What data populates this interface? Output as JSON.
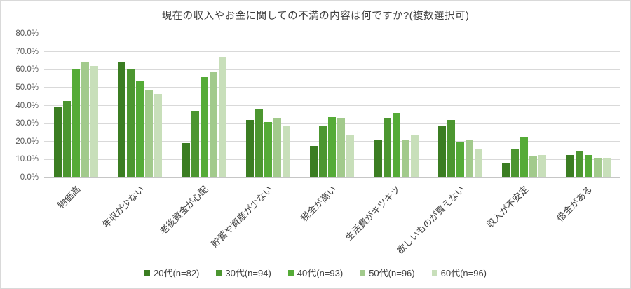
{
  "chart_data": {
    "type": "bar",
    "title": "現在の収入やお金に関しての不満の内容は何ですか?(複数選択可)",
    "categories": [
      "物価高",
      "年収が少ない",
      "老後資金が心配",
      "貯蓄や資産が少ない",
      "税金が高い",
      "生活費がキツキツ",
      "欲しいものが買えない",
      "収入が不安定",
      "借金がある"
    ],
    "series": [
      {
        "name": "20代(n=82)",
        "color": "#3b7d22",
        "values": [
          39,
          64.5,
          19,
          32,
          17.5,
          21,
          28.5,
          8,
          12.5
        ]
      },
      {
        "name": "30代(n=94)",
        "color": "#4c9630",
        "values": [
          42.5,
          60,
          37,
          38,
          29,
          33,
          32,
          15.5,
          15
        ]
      },
      {
        "name": "40代(n=93)",
        "color": "#55ab37",
        "values": [
          60,
          53.5,
          56,
          31,
          33.5,
          36,
          19.5,
          22.5,
          12.5
        ]
      },
      {
        "name": "50代(n=96)",
        "color": "#a2ca8c",
        "values": [
          64.5,
          48.5,
          58.5,
          33,
          33,
          21,
          21,
          12,
          11
        ]
      },
      {
        "name": "60代(n=96)",
        "color": "#c8dfba",
        "values": [
          62,
          46.5,
          67,
          29,
          23.5,
          23.5,
          16,
          12.5,
          11
        ]
      }
    ],
    "ylim": [
      0,
      80
    ],
    "ytick_step": 10,
    "ytick_labels": [
      "0.0%",
      "10.0%",
      "20.0%",
      "30.0%",
      "40.0%",
      "50.0%",
      "60.0%",
      "70.0%",
      "80.0%"
    ],
    "grid": true,
    "legend_position": "bottom",
    "colors": {
      "gridline": "#d9d9d9",
      "axis_line": "#c6c6c6",
      "title_text": "#404040",
      "tick_text": "#595959",
      "category_text": "#404040"
    }
  }
}
